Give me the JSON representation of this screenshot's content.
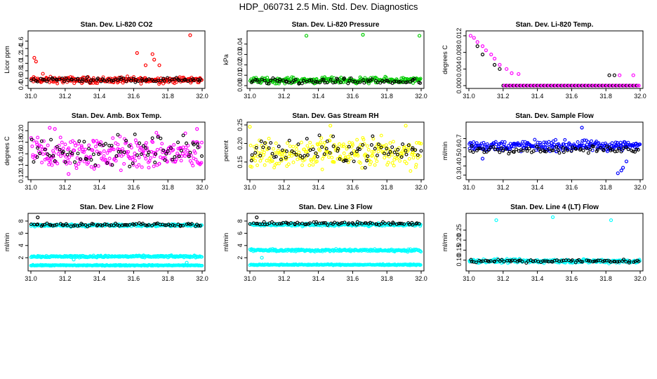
{
  "title": "HDP_060731  2.5 Min. Std. Dev. Diagnostics",
  "colors": {
    "red": "#ff0000",
    "green": "#00cc00",
    "magenta": "#ff00ff",
    "yellow": "#ffff00",
    "blue": "#0000ff",
    "cyan": "#00ffff",
    "black": "#000000"
  },
  "chart_data": [
    {
      "type": "scatter",
      "title": "Stan. Dev. Li-820 CO2",
      "ylabel": "Licor ppm",
      "xlim": [
        31.0,
        32.0
      ],
      "xticks": [
        "31.0",
        "31.2",
        "31.4",
        "31.6",
        "31.8",
        "32.0"
      ],
      "ylim": [
        0.4,
        1.8
      ],
      "yticks": [
        "0.4",
        "0.6",
        "0.8",
        "1.0",
        "1.2",
        "1.4",
        "1.6"
      ],
      "series": [
        {
          "name": "main",
          "color": "#ff0000",
          "base": 0.55,
          "spread": 0.06,
          "highlights": [
            [
              31.02,
              1.15
            ],
            [
              31.03,
              1.05
            ],
            [
              31.62,
              1.28
            ],
            [
              31.71,
              1.25
            ],
            [
              31.72,
              1.1
            ],
            [
              31.75,
              0.95
            ],
            [
              31.93,
              1.76
            ],
            [
              31.67,
              0.95
            ],
            [
              31.07,
              0.72
            ]
          ]
        },
        {
          "name": "overlay",
          "color": "#000000",
          "base": 0.56,
          "spread": 0.04,
          "highlights": []
        }
      ]
    },
    {
      "type": "scatter",
      "title": "Stan. Dev. Li-820 Pressure",
      "ylabel": "kPa",
      "xlim": [
        31.0,
        32.0
      ],
      "xticks": [
        "31.0",
        "31.2",
        "31.4",
        "31.6",
        "31.8",
        "32.0"
      ],
      "ylim": [
        0.0,
        0.05
      ],
      "yticks": [
        "0.00",
        "0.01",
        "0.02",
        "0.03",
        "0.04"
      ],
      "series": [
        {
          "name": "main",
          "color": "#00cc00",
          "base": 0.005,
          "spread": 0.002,
          "highlights": [
            [
              31.33,
              0.048
            ],
            [
              31.66,
              0.049
            ],
            [
              31.99,
              0.048
            ]
          ]
        },
        {
          "name": "overlay",
          "color": "#000000",
          "base": 0.004,
          "spread": 0.002,
          "highlights": []
        }
      ]
    },
    {
      "type": "scatter",
      "title": "Stan. Dev. Li-820 Temp.",
      "ylabel": "degrees C",
      "xlim": [
        31.0,
        32.0
      ],
      "xticks": [
        "31.0",
        "31.2",
        "31.4",
        "31.6",
        "31.8",
        "32.0"
      ],
      "ylim": [
        0.0,
        0.0125
      ],
      "yticks": [
        "0.000",
        "0.004",
        "0.008",
        "0.012"
      ],
      "series": [
        {
          "name": "main",
          "color": "#ff00ff",
          "base": 0.0,
          "spread": 0.0,
          "highlights": [
            [
              31.01,
              0.012
            ],
            [
              31.03,
              0.0115
            ],
            [
              31.05,
              0.0105
            ],
            [
              31.08,
              0.0095
            ],
            [
              31.1,
              0.0085
            ],
            [
              31.13,
              0.0075
            ],
            [
              31.15,
              0.0065
            ],
            [
              31.18,
              0.005
            ],
            [
              31.22,
              0.004
            ],
            [
              31.25,
              0.003
            ],
            [
              31.29,
              0.0028
            ],
            [
              31.88,
              0.0025
            ],
            [
              31.96,
              0.0025
            ]
          ]
        },
        {
          "name": "overlay",
          "color": "#000000",
          "base": 0.0,
          "spread": 0.0,
          "highlights": [
            [
              31.05,
              0.0095
            ],
            [
              31.08,
              0.0075
            ],
            [
              31.15,
              0.005
            ],
            [
              31.18,
              0.004
            ],
            [
              31.82,
              0.0025
            ],
            [
              31.85,
              0.0025
            ]
          ]
        }
      ]
    },
    {
      "type": "scatter",
      "title": "Stan. Dev. Amb. Box Temp.",
      "ylabel": "degrees C",
      "xlim": [
        31.0,
        32.0
      ],
      "xticks": [
        "31.0",
        "31.2",
        "31.4",
        "31.6",
        "31.8",
        "32.0"
      ],
      "ylim": [
        0.12,
        0.21
      ],
      "yticks": [
        "0.12",
        "0.14",
        "0.16",
        "0.18",
        "0.20"
      ],
      "series": [
        {
          "name": "main",
          "color": "#ff00ff",
          "base": 0.16,
          "spread": 0.02,
          "highlights": [
            [
              31.11,
              0.205
            ],
            [
              31.14,
              0.203
            ],
            [
              31.97,
              0.203
            ],
            [
              31.22,
              0.125
            ]
          ]
        },
        {
          "name": "overlay",
          "color": "#000000",
          "base": 0.165,
          "spread": 0.018,
          "highlights": []
        }
      ]
    },
    {
      "type": "scatter",
      "title": "Stan. Dev. Gas Stream RH",
      "ylabel": "percent",
      "xlim": [
        31.0,
        32.0
      ],
      "xticks": [
        "31.0",
        "31.2",
        "31.4",
        "31.6",
        "31.8",
        "32.0"
      ],
      "ylim": [
        0.11,
        0.25
      ],
      "yticks": [
        "0.15",
        "0.20",
        "0.25"
      ],
      "series": [
        {
          "name": "main",
          "color": "#ffff00",
          "base": 0.175,
          "spread": 0.03,
          "highlights": [
            [
              31.0,
              0.245
            ],
            [
              31.47,
              0.248
            ],
            [
              31.91,
              0.248
            ]
          ]
        },
        {
          "name": "overlay",
          "color": "#000000",
          "base": 0.18,
          "spread": 0.025,
          "highlights": []
        }
      ]
    },
    {
      "type": "scatter",
      "title": "Stan. Dev. Sample Flow",
      "ylabel": "ml/min",
      "xlim": [
        31.0,
        32.0
      ],
      "xticks": [
        "31.0",
        "31.2",
        "31.4",
        "31.6",
        "31.8",
        "32.0"
      ],
      "ylim": [
        0.28,
        0.85
      ],
      "yticks": [
        "0.3",
        "0.4",
        "0.5",
        "0.6",
        "0.7"
      ],
      "series": [
        {
          "name": "main",
          "color": "#0000ff",
          "base": 0.62,
          "spread": 0.04,
          "highlights": [
            [
              31.66,
              0.82
            ],
            [
              31.87,
              0.32
            ],
            [
              31.89,
              0.35
            ],
            [
              31.9,
              0.38
            ],
            [
              31.92,
              0.45
            ],
            [
              31.08,
              0.48
            ]
          ]
        },
        {
          "name": "overlay",
          "color": "#000000",
          "base": 0.58,
          "spread": 0.025,
          "highlights": []
        }
      ]
    },
    {
      "type": "scatter",
      "title": "Stan. Dev. Line 2 Flow",
      "ylabel": "ml/min",
      "xlim": [
        31.0,
        32.0
      ],
      "xticks": [
        "31.0",
        "31.2",
        "31.4",
        "31.6",
        "31.8",
        "32.0"
      ],
      "ylim": [
        0.3,
        8.8
      ],
      "yticks": [
        "2",
        "4",
        "6",
        "8"
      ],
      "series": [
        {
          "name": "upper",
          "color": "#00ffff",
          "base": 2.2,
          "spread": 0.12,
          "highlights": [
            [
              31.25,
              1.7
            ],
            [
              31.91,
              1.2
            ]
          ]
        },
        {
          "name": "lower",
          "color": "#00ffff",
          "base": 0.75,
          "spread": 0.06,
          "highlights": []
        },
        {
          "name": "top-cyan",
          "color": "#00ffff",
          "base": 7.3,
          "spread": 0.15,
          "highlights": []
        },
        {
          "name": "top-black",
          "color": "#000000",
          "base": 7.4,
          "spread": 0.18,
          "highlights": [
            [
              31.04,
              8.6
            ]
          ]
        }
      ]
    },
    {
      "type": "scatter",
      "title": "Stan. Dev. Line 3 Flow",
      "ylabel": "ml/min",
      "xlim": [
        31.0,
        32.0
      ],
      "xticks": [
        "31.0",
        "31.2",
        "31.4",
        "31.6",
        "31.8",
        "32.0"
      ],
      "ylim": [
        0.3,
        8.8
      ],
      "yticks": [
        "2",
        "4",
        "6",
        "8"
      ],
      "series": [
        {
          "name": "upper",
          "color": "#00ffff",
          "base": 3.2,
          "spread": 0.14,
          "highlights": [
            [
              31.07,
              2.0
            ]
          ]
        },
        {
          "name": "lower",
          "color": "#00ffff",
          "base": 0.85,
          "spread": 0.06,
          "highlights": []
        },
        {
          "name": "top-cyan",
          "color": "#00ffff",
          "base": 7.4,
          "spread": 0.15,
          "highlights": []
        },
        {
          "name": "top-black",
          "color": "#000000",
          "base": 7.6,
          "spread": 0.18,
          "highlights": [
            [
              31.04,
              8.6
            ]
          ]
        }
      ]
    },
    {
      "type": "scatter",
      "title": "Stan. Dev. Line 4 (LT) Flow",
      "ylabel": "ml/min",
      "xlim": [
        31.0,
        32.0
      ],
      "xticks": [
        "31.0",
        "31.2",
        "31.4",
        "31.6",
        "31.8",
        "32.0"
      ],
      "ylim": [
        0.06,
        0.32
      ],
      "yticks": [
        "0.10",
        "0.15",
        "0.20",
        "0.25"
      ],
      "series": [
        {
          "name": "main",
          "color": "#00ffff",
          "base": 0.095,
          "spread": 0.007,
          "highlights": [
            [
              31.16,
              0.3
            ],
            [
              31.49,
              0.315
            ],
            [
              31.83,
              0.3
            ]
          ]
        },
        {
          "name": "overlay",
          "color": "#000000",
          "base": 0.095,
          "spread": 0.006,
          "highlights": []
        }
      ]
    }
  ]
}
